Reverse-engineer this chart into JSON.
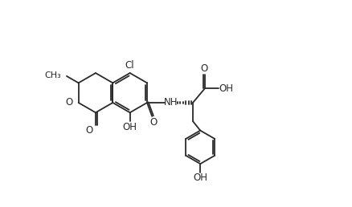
{
  "bg_color": "#ffffff",
  "line_color": "#2a2a2a",
  "line_width": 1.3,
  "font_size": 8.5,
  "figsize": [
    4.38,
    2.58
  ],
  "dpi": 100,
  "ring_r": 32
}
